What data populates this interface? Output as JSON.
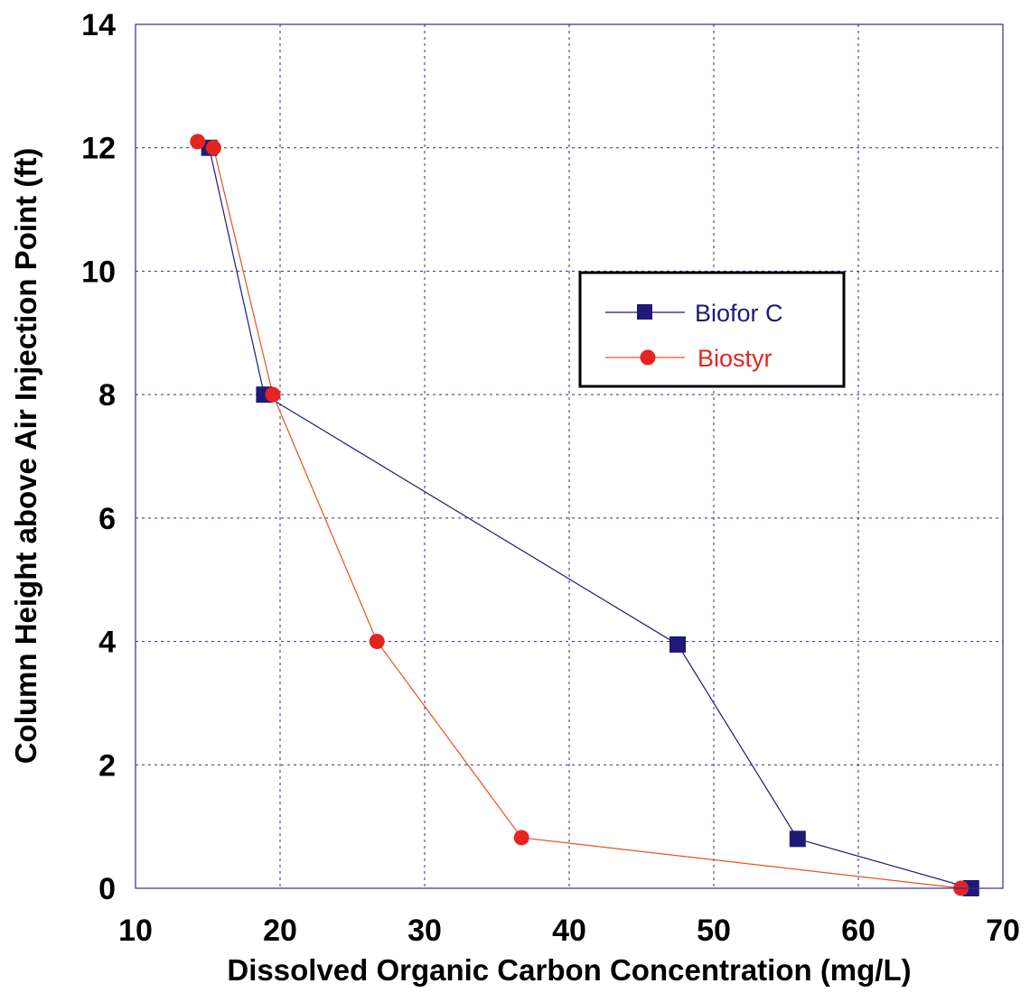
{
  "chart_data": {
    "type": "line",
    "title": "",
    "xlabel": "Dissolved Organic Carbon Concentration (mg/L)",
    "ylabel": "Column Height above Air Injection Point (ft)",
    "xlim": [
      10,
      70
    ],
    "ylim": [
      0,
      14
    ],
    "xticks": [
      10,
      20,
      30,
      40,
      50,
      60,
      70
    ],
    "yticks": [
      0,
      2,
      4,
      6,
      8,
      10,
      12,
      14
    ],
    "grid": true,
    "legend_position": "center-right",
    "series": [
      {
        "name": "Biofor C",
        "marker": "square",
        "color": "#1f1a78",
        "points": [
          {
            "x": 15.1,
            "y": 12.0
          },
          {
            "x": 18.9,
            "y": 8.0
          },
          {
            "x": 47.5,
            "y": 3.95
          },
          {
            "x": 55.8,
            "y": 0.8
          },
          {
            "x": 67.8,
            "y": 0.0
          }
        ]
      },
      {
        "name": "Biostyr",
        "marker": "circle",
        "color": "#e52420",
        "points": [
          {
            "x": 14.3,
            "y": 12.1
          },
          {
            "x": 15.4,
            "y": 12.0
          },
          {
            "x": 19.5,
            "y": 8.0
          },
          {
            "x": 26.7,
            "y": 4.0
          },
          {
            "x": 36.7,
            "y": 0.82
          },
          {
            "x": 67.1,
            "y": 0.0
          }
        ]
      }
    ]
  }
}
